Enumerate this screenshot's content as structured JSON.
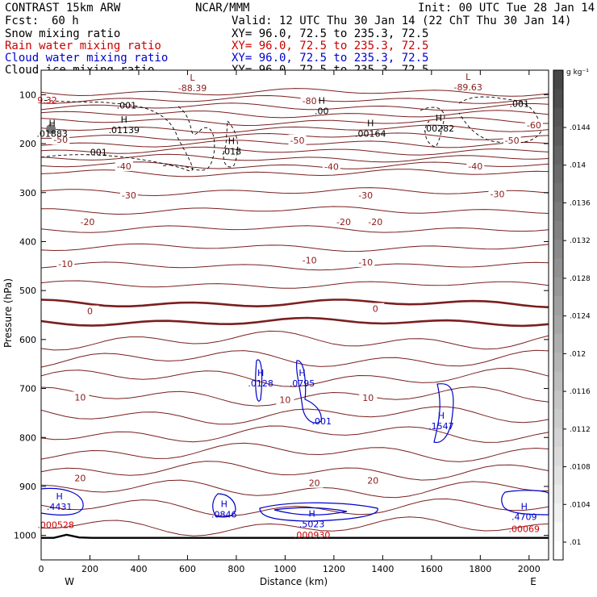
{
  "header": {
    "model": "CONTRAST 15km ARW",
    "center": "NCAR/MMM",
    "init": "Init: 00 UTC Tue 28 Jan 14",
    "fcst_label": "Fcst:",
    "fcst_value": "60 h",
    "valid": "Valid: 12 UTC Thu 30 Jan 14 (22 ChT Thu 30 Jan 14)"
  },
  "legend": [
    {
      "name": "Snow mixing ratio",
      "xy": "XY=  96.0, 72.5 to 235.3, 72.5",
      "color": "#000000"
    },
    {
      "name": "Rain water mixing ratio",
      "xy": "XY=  96.0, 72.5 to 235.3, 72.5",
      "color": "#cc0000"
    },
    {
      "name": "Cloud water mixing ratio",
      "xy": "XY=  96.0, 72.5 to 235.3, 72.5",
      "color": "#0000cc"
    },
    {
      "name": "Cloud ice mixing ratio",
      "xy": "XY=  96.0, 72.5 to 235.3, 72.5",
      "color": "#000000"
    }
  ],
  "colorbar": {
    "unit": "g kg⁻¹",
    "ticks": [
      ".0144",
      ".014",
      ".0136",
      ".0132",
      ".0128",
      ".0124",
      ".012",
      ".0116",
      ".0112",
      ".0108",
      ".0104",
      ".01"
    ]
  },
  "chart_data": {
    "type": "contour-cross-section",
    "xlabel": "Distance (km)",
    "ylabel": "Pressure (hPa)",
    "xlim": [
      0,
      2080
    ],
    "ylim": [
      1050,
      50
    ],
    "x_ticks": [
      0,
      200,
      400,
      600,
      800,
      1000,
      1200,
      1400,
      1600,
      1800,
      2000
    ],
    "y_ticks": [
      100,
      200,
      300,
      400,
      500,
      600,
      700,
      800,
      900,
      1000
    ],
    "endpoints": {
      "left": "W",
      "right": "E"
    },
    "temperature_labels": [
      {
        "x": 80,
        "p": 192,
        "text": "-50"
      },
      {
        "x": 1050,
        "p": 193,
        "text": "-50"
      },
      {
        "x": 1930,
        "p": 193,
        "text": "-50"
      },
      {
        "x": 2020,
        "p": 162,
        "text": "-60"
      },
      {
        "x": 1100,
        "p": 113,
        "text": "-80"
      },
      {
        "x": 340,
        "p": 246,
        "text": "-40"
      },
      {
        "x": 1190,
        "p": 247,
        "text": "-40"
      },
      {
        "x": 1780,
        "p": 246,
        "text": "-40"
      },
      {
        "x": 360,
        "p": 305,
        "text": "-30"
      },
      {
        "x": 1330,
        "p": 305,
        "text": "-30"
      },
      {
        "x": 1870,
        "p": 303,
        "text": "-30"
      },
      {
        "x": 190,
        "p": 360,
        "text": "-20"
      },
      {
        "x": 1240,
        "p": 360,
        "text": "-20"
      },
      {
        "x": 1370,
        "p": 360,
        "text": "-20"
      },
      {
        "x": 100,
        "p": 445,
        "text": "-10"
      },
      {
        "x": 1100,
        "p": 438,
        "text": "-10"
      },
      {
        "x": 1330,
        "p": 442,
        "text": "-10"
      },
      {
        "x": 200,
        "p": 542,
        "text": "0"
      },
      {
        "x": 1370,
        "p": 537,
        "text": "0"
      },
      {
        "x": 160,
        "p": 718,
        "text": "10"
      },
      {
        "x": 1000,
        "p": 723,
        "text": "10"
      },
      {
        "x": 1340,
        "p": 719,
        "text": "10"
      },
      {
        "x": 160,
        "p": 883,
        "text": "20"
      },
      {
        "x": 1120,
        "p": 893,
        "text": "20"
      },
      {
        "x": 1360,
        "p": 888,
        "text": "20"
      }
    ],
    "extrema": [
      {
        "x": 25,
        "p": 104,
        "kind": "",
        "value": "9.32",
        "color": "#cc0000"
      },
      {
        "x": 620,
        "p": 80,
        "kind": "L",
        "value": "-88.39",
        "color": "#8b1a1a"
      },
      {
        "x": 1750,
        "p": 78,
        "kind": "L",
        "value": "-89.63",
        "color": "#8b1a1a"
      },
      {
        "x": 1150,
        "p": 127,
        "kind": "H",
        "value": ".00",
        "color": "#000000"
      },
      {
        "x": 45,
        "p": 173,
        "kind": "H",
        "value": ".01883",
        "color": "#000000"
      },
      {
        "x": 340,
        "p": 165,
        "kind": "H",
        "value": ".01139",
        "color": "#000000"
      },
      {
        "x": 1350,
        "p": 173,
        "kind": "H",
        "value": ".00164",
        "color": "#000000"
      },
      {
        "x": 1630,
        "p": 162,
        "kind": "H",
        "value": ".00282",
        "color": "#000000"
      },
      {
        "x": 780,
        "p": 209,
        "kind": "H",
        "value": ".018",
        "color": "#000000"
      },
      {
        "x": 350,
        "p": 115,
        "kind": "",
        "value": ".001",
        "color": "#000000"
      },
      {
        "x": 230,
        "p": 211,
        "kind": "",
        "value": ".001",
        "color": "#000000"
      },
      {
        "x": 1960,
        "p": 112,
        "kind": "",
        "value": ".001",
        "color": "#000000"
      },
      {
        "x": 900,
        "p": 683,
        "kind": "H",
        "value": ".0128",
        "color": "#0000cc"
      },
      {
        "x": 1070,
        "p": 683,
        "kind": "H",
        "value": ".0795",
        "color": "#0000cc"
      },
      {
        "x": 1150,
        "p": 760,
        "kind": "",
        "value": ".001",
        "color": "#0000cc"
      },
      {
        "x": 1640,
        "p": 770,
        "kind": "H",
        "value": ".1547",
        "color": "#0000cc"
      },
      {
        "x": 75,
        "p": 935,
        "kind": "H",
        "value": ".4431",
        "color": "#0000cc"
      },
      {
        "x": 750,
        "p": 950,
        "kind": "H",
        "value": ".0846",
        "color": "#0000cc"
      },
      {
        "x": 1110,
        "p": 970,
        "kind": "H",
        "value": ".5023",
        "color": "#0000cc"
      },
      {
        "x": 1980,
        "p": 955,
        "kind": "H",
        "value": ".4709",
        "color": "#0000cc"
      },
      {
        "x": 60,
        "p": 972,
        "kind": "",
        "value": ".000528",
        "color": "#cc0000"
      },
      {
        "x": 1110,
        "p": 992,
        "kind": "",
        "value": ".000930",
        "color": "#cc0000"
      },
      {
        "x": 1980,
        "p": 980,
        "kind": "",
        "value": ".00069",
        "color": "#cc0000"
      }
    ]
  }
}
